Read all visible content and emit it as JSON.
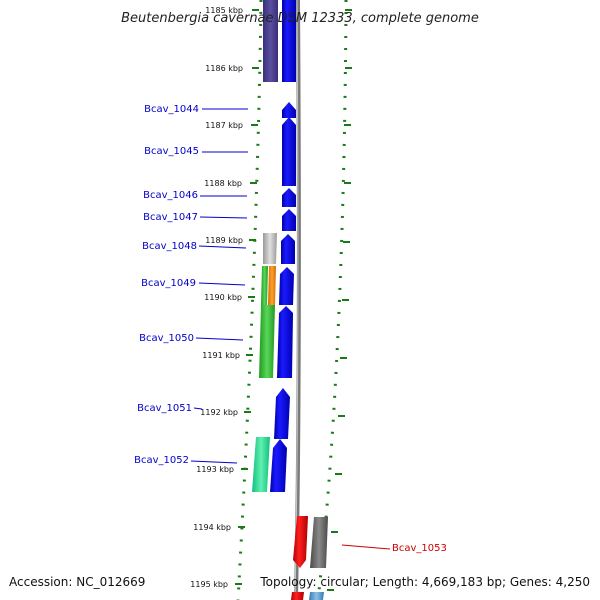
{
  "header": {
    "title": "Beutenbergia cavernae DSM 12333, complete genome"
  },
  "footer": {
    "accession": "Accession: NC_012669",
    "topology": "Topology: circular; Length: 4,669,183 bp; Genes: 4,250"
  },
  "ruler": {
    "ticks": [
      "1185 kbp",
      "1186 kbp",
      "1187 kbp",
      "1188 kbp",
      "1189 kbp",
      "1190 kbp",
      "1191 kbp",
      "1192 kbp",
      "1193 kbp",
      "1194 kbp",
      "1195 kbp"
    ]
  },
  "genes": [
    {
      "label": "Bcav_1044",
      "color": "#0000cc"
    },
    {
      "label": "Bcav_1045",
      "color": "#0000cc"
    },
    {
      "label": "Bcav_1046",
      "color": "#0000cc"
    },
    {
      "label": "Bcav_1047",
      "color": "#0000cc"
    },
    {
      "label": "Bcav_1048",
      "color": "#0000cc"
    },
    {
      "label": "Bcav_1049",
      "color": "#0000cc"
    },
    {
      "label": "Bcav_1050",
      "color": "#0000cc"
    },
    {
      "label": "Bcav_1051",
      "color": "#0000cc"
    },
    {
      "label": "Bcav_1052",
      "color": "#0000cc"
    },
    {
      "label": "Bcav_1053",
      "color": "#cc0000"
    }
  ],
  "colors": {
    "forward_strand": "#0000ee",
    "reverse_strand": "#ee0000",
    "backbone": "#7a7a7a",
    "dotted_track": "#1a7a1a",
    "tick": "#1a7a1a"
  }
}
